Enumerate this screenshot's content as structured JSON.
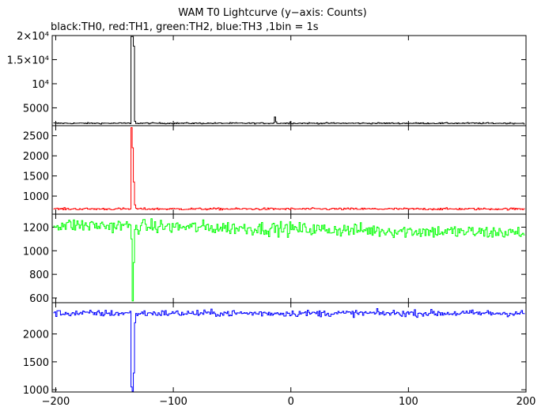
{
  "title": "WAM T0 Lightcurve (y−axis: Counts)",
  "subtitle": "black:TH0, red:TH1, green:TH2, blue:TH3 ,1bin = 1s",
  "chart_data": {
    "type": "line",
    "xlim": [
      -203,
      200
    ],
    "x_ticks": [
      -200,
      -100,
      0,
      100,
      200
    ],
    "x_tick_labels": [
      "−200",
      "−100",
      "0",
      "100",
      "200"
    ],
    "grid": false,
    "panels": [
      {
        "name": "TH0",
        "color": "#000000",
        "ylim": [
          1300,
          20000
        ],
        "y_ticks": [
          5000,
          10000,
          15000,
          20000
        ],
        "y_tick_labels": [
          "5000",
          "10⁴",
          "1.5×10⁴",
          "2×10⁴"
        ],
        "baseline": 1800,
        "noise": 120,
        "spikes": [
          {
            "x": -136,
            "y": 19800
          },
          {
            "x": -135,
            "y": 19800
          },
          {
            "x": -134,
            "y": 17800
          },
          {
            "x": -133,
            "y": 2200
          },
          {
            "x": -14,
            "y": 3100
          },
          {
            "x": -13,
            "y": 2100
          },
          {
            "x": -1,
            "y": 2050
          }
        ]
      },
      {
        "name": "TH1",
        "color": "#ff0000",
        "ylim": [
          550,
          2750
        ],
        "y_ticks": [
          1000,
          1500,
          2000,
          2500
        ],
        "y_tick_labels": [
          "1000",
          "1500",
          "2000",
          "2500"
        ],
        "baseline": 680,
        "noise": 25,
        "spikes": [
          {
            "x": -136,
            "y": 2700
          },
          {
            "x": -135,
            "y": 2200
          },
          {
            "x": -134,
            "y": 1350
          },
          {
            "x": -133,
            "y": 780
          }
        ]
      },
      {
        "name": "TH2",
        "color": "#00ff00",
        "ylim": [
          560,
          1310
        ],
        "y_ticks": [
          600,
          800,
          1000,
          1200
        ],
        "y_tick_labels": [
          "600",
          "800",
          "1000",
          "1200"
        ],
        "baseline": 1220,
        "trend_end": 1150,
        "noise": 55,
        "spikes": [
          {
            "x": -136,
            "y": 1100
          },
          {
            "x": -135,
            "y": 575
          },
          {
            "x": -134,
            "y": 900
          },
          {
            "x": -133,
            "y": 1180
          }
        ]
      },
      {
        "name": "TH3",
        "color": "#0000ff",
        "ylim": [
          960,
          2560
        ],
        "y_ticks": [
          1000,
          1500,
          2000
        ],
        "y_tick_labels": [
          "1000",
          "1500",
          "2000"
        ],
        "baseline": 2370,
        "noise": 55,
        "spikes": [
          {
            "x": -136,
            "y": 1050
          },
          {
            "x": -135,
            "y": 975
          },
          {
            "x": -134,
            "y": 1300
          },
          {
            "x": -133,
            "y": 2200
          }
        ]
      }
    ]
  }
}
